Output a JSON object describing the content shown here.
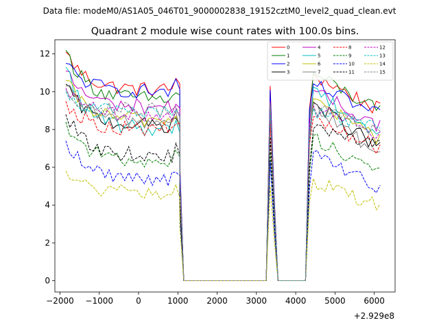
{
  "figure": {
    "suptitle": "Data file: modeM0/AS1A05_046T01_9000002838_19152cztM0_level2_quad_clean.evt"
  },
  "chart_data": {
    "type": "line",
    "title": "Quadrant 2 module wise count rates with 100.0s bins.",
    "xlabel": "",
    "ylabel": "",
    "x_offset_label": "+2.929e8",
    "xlim": [
      -2130,
      6530
    ],
    "ylim": [
      -0.6,
      12.75
    ],
    "x_ticks": [
      -2000,
      -1000,
      0,
      1000,
      2000,
      3000,
      4000,
      5000,
      6000
    ],
    "x_tick_labels": [
      "−2000",
      "−1000",
      "0",
      "1000",
      "2000",
      "3000",
      "4000",
      "5000",
      "6000"
    ],
    "y_ticks": [
      0,
      2,
      4,
      6,
      8,
      10,
      12
    ],
    "y_tick_labels": [
      "0",
      "2",
      "4",
      "6",
      "8",
      "10",
      "12"
    ],
    "grid": false,
    "legend_position": "top-right",
    "legend_columns": 4,
    "segments": [
      {
        "start": -1850,
        "end": 1150
      },
      {
        "start": 1150,
        "end": 3250
      },
      {
        "start": 3250,
        "end": 3550
      },
      {
        "start": 3550,
        "end": 4250
      },
      {
        "start": 4250,
        "end": 6150
      }
    ],
    "series": [
      {
        "name": "0",
        "color": "#ff0000",
        "dash": "solid",
        "level": 10.1,
        "first": 12.1,
        "end_level": 9.0,
        "spike": 10.3
      },
      {
        "name": "1",
        "color": "#008000",
        "dash": "solid",
        "level": 9.6,
        "first": 12.2,
        "end_level": 8.9,
        "spike": 9.8
      },
      {
        "name": "2",
        "color": "#0000ff",
        "dash": "solid",
        "level": 10.0,
        "first": 11.5,
        "end_level": 8.7,
        "spike": 10.1
      },
      {
        "name": "3",
        "color": "#000000",
        "dash": "solid",
        "level": 8.2,
        "first": 10.4,
        "end_level": 7.0,
        "spike": 9.3
      },
      {
        "name": "4",
        "color": "#bf00bf",
        "dash": "solid",
        "level": 9.2,
        "first": 11.1,
        "end_level": 8.2,
        "spike": 9.5
      },
      {
        "name": "5",
        "color": "#00bfbf",
        "dash": "solid",
        "level": 8.0,
        "first": 11.3,
        "end_level": 7.6,
        "spike": 8.8
      },
      {
        "name": "6",
        "color": "#bfbf00",
        "dash": "solid",
        "level": 8.5,
        "first": 10.6,
        "end_level": 7.5,
        "spike": 8.6
      },
      {
        "name": "7",
        "color": "#808080",
        "dash": "solid",
        "level": 8.4,
        "first": 10.3,
        "end_level": 6.6,
        "spike": 9.4
      },
      {
        "name": "8",
        "color": "#ff0000",
        "dash": "dashed",
        "level": 8.0,
        "first": 9.5,
        "end_level": 7.0,
        "spike": 8.4
      },
      {
        "name": "9",
        "color": "#008000",
        "dash": "dashed",
        "level": 6.3,
        "first": 8.4,
        "end_level": 5.8,
        "spike": 6.8
      },
      {
        "name": "10",
        "color": "#0000ff",
        "dash": "dashed",
        "level": 5.4,
        "first": 7.4,
        "end_level": 4.9,
        "spike": 6.3
      },
      {
        "name": "11",
        "color": "#000000",
        "dash": "dashed",
        "level": 6.6,
        "first": 8.8,
        "end_level": 7.3,
        "spike": 7.6
      },
      {
        "name": "12",
        "color": "#bf00bf",
        "dash": "dashed",
        "level": 8.7,
        "first": 10.2,
        "end_level": 7.8,
        "spike": 9.0
      },
      {
        "name": "13",
        "color": "#00bfbf",
        "dash": "dashed",
        "level": 8.9,
        "first": 10.0,
        "end_level": 8.0,
        "spike": 9.2
      },
      {
        "name": "14",
        "color": "#bfbf00",
        "dash": "dashed",
        "level": 4.6,
        "first": 5.8,
        "end_level": 4.0,
        "spike": 5.0
      },
      {
        "name": "15",
        "color": "#808080",
        "dash": "dashed",
        "level": 9.0,
        "first": 10.1,
        "end_level": 7.9,
        "spike": 9.3
      }
    ]
  }
}
